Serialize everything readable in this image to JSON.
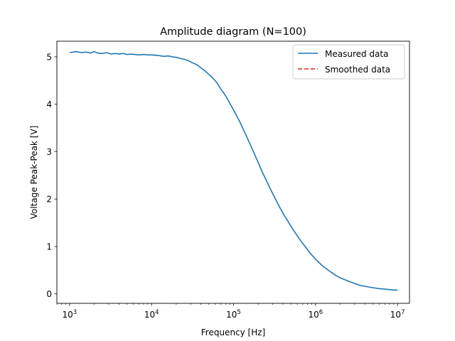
{
  "chart_data": {
    "type": "line",
    "title": "Amplitude diagram (N=100)",
    "xlabel": "Frequency [Hz]",
    "ylabel": "Voltage Peak-Peak [V]",
    "xscale": "log",
    "xlim": [
      700,
      14000000
    ],
    "ylim": [
      -0.2,
      5.33
    ],
    "grid": false,
    "legend": "top-right",
    "xticks": [
      {
        "value": 1000,
        "base": "10",
        "exp": "3"
      },
      {
        "value": 10000,
        "base": "10",
        "exp": "4"
      },
      {
        "value": 100000,
        "base": "10",
        "exp": "5"
      },
      {
        "value": 1000000,
        "base": "10",
        "exp": "6"
      },
      {
        "value": 10000000,
        "base": "10",
        "exp": "7"
      }
    ],
    "yticks": [
      {
        "value": 0,
        "label": "0"
      },
      {
        "value": 1,
        "label": "1"
      },
      {
        "value": 2,
        "label": "2"
      },
      {
        "value": 3,
        "label": "3"
      },
      {
        "value": 4,
        "label": "4"
      },
      {
        "value": 5,
        "label": "5"
      }
    ],
    "series": [
      {
        "name": "Measured data",
        "color": "#1f77b4",
        "style": "solid",
        "x": [
          1000,
          1200,
          1400,
          1600,
          1800,
          2000,
          2200,
          2500,
          2800,
          3200,
          3600,
          4000,
          4500,
          5000,
          5600,
          6300,
          7000,
          8000,
          9000,
          10000,
          12000,
          14000,
          16000,
          18000,
          20000,
          22000,
          25000,
          28000,
          32000,
          36000,
          40000,
          45000,
          50000,
          56000,
          63000,
          70000,
          80000,
          90000,
          100000,
          120000,
          140000,
          160000,
          180000,
          200000,
          220000,
          250000,
          280000,
          320000,
          360000,
          400000,
          450000,
          500000,
          560000,
          630000,
          700000,
          800000,
          900000,
          1000000,
          1200000,
          1400000,
          1600000,
          1800000,
          2000000,
          2500000,
          3000000,
          3500000,
          4000000,
          5000000,
          6000000,
          7000000,
          8000000,
          9000000,
          10000000
        ],
        "y": [
          5.09,
          5.11,
          5.09,
          5.1,
          5.08,
          5.11,
          5.08,
          5.07,
          5.09,
          5.06,
          5.07,
          5.06,
          5.07,
          5.05,
          5.06,
          5.05,
          5.04,
          5.05,
          5.04,
          5.04,
          5.03,
          5.01,
          5.02,
          5.0,
          4.99,
          4.97,
          4.95,
          4.92,
          4.87,
          4.83,
          4.77,
          4.7,
          4.63,
          4.55,
          4.45,
          4.32,
          4.18,
          4.02,
          3.88,
          3.62,
          3.37,
          3.15,
          2.95,
          2.77,
          2.6,
          2.4,
          2.22,
          2.02,
          1.85,
          1.7,
          1.56,
          1.43,
          1.3,
          1.17,
          1.06,
          0.93,
          0.82,
          0.73,
          0.6,
          0.51,
          0.44,
          0.38,
          0.34,
          0.27,
          0.22,
          0.18,
          0.16,
          0.13,
          0.11,
          0.1,
          0.09,
          0.08,
          0.08
        ]
      },
      {
        "name": "Smoothed data",
        "color": "#d62728",
        "style": "dashed",
        "x": [],
        "y": []
      }
    ]
  }
}
